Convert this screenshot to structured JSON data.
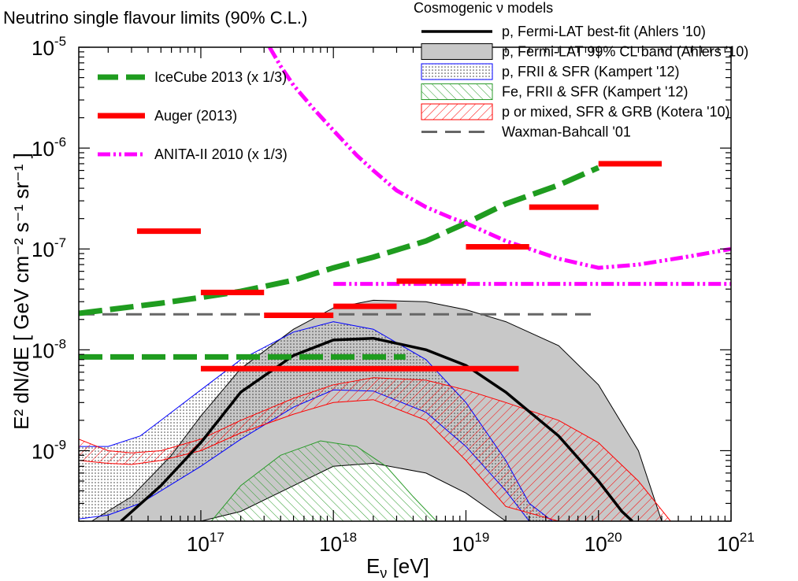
{
  "chart_data": {
    "type": "line",
    "title": "Neutrino single flavour limits (90% C.L.)",
    "xlabel": {
      "base": "E",
      "sub": "ν",
      "unit": " [eV]"
    },
    "ylabel": "E² dN/dE  [ GeV cm⁻² s⁻¹ sr⁻¹ ]",
    "xlim": [
      1.2e+16,
      1e+21
    ],
    "ylim": [
      2e-10,
      1e-05
    ],
    "x_ticks": [
      {
        "base": "10",
        "exp": "17"
      },
      {
        "base": "10",
        "exp": "18"
      },
      {
        "base": "10",
        "exp": "19"
      },
      {
        "base": "10",
        "exp": "20"
      },
      {
        "base": "10",
        "exp": "21"
      }
    ],
    "y_ticks": [
      {
        "base": "10",
        "exp": "-5"
      },
      {
        "base": "10",
        "exp": "-6"
      },
      {
        "base": "10",
        "exp": "-7"
      },
      {
        "base": "10",
        "exp": "-8"
      },
      {
        "base": "10",
        "exp": "-9"
      }
    ],
    "model_legend_title": "Cosmogenic ν models",
    "limits_legend": [
      {
        "label": "IceCube 2013 (x 1/3)",
        "color": "#1f9c1f",
        "style": "dashed"
      },
      {
        "label": "Auger (2013)",
        "color": "#ff0000",
        "style": "solid"
      },
      {
        "label": "ANITA-II 2010 (x 1/3)",
        "color": "#ff00ff",
        "style": "dashdot"
      }
    ],
    "models_legend": [
      {
        "label": "p, Fermi-LAT best-fit (Ahlers '10)",
        "kind": "line",
        "color": "#000000"
      },
      {
        "label": "p, Fermi-LAT 99% CL band (Ahlers '10)",
        "kind": "band",
        "color": "#c8c8c8"
      },
      {
        "label": "p, FRII & SFR (Kampert '12)",
        "kind": "dots",
        "color": "#0000ff"
      },
      {
        "label": "Fe, FRII & SFR (Kampert '12)",
        "kind": "hatch",
        "color": "#2a9a2a"
      },
      {
        "label": "p or mixed, SFR & GRB (Kotera '10)",
        "kind": "hatch",
        "color": "#ff0000"
      },
      {
        "label": "Waxman-Bahcall '01",
        "kind": "dashed",
        "color": "#666666"
      }
    ],
    "series": {
      "icecube_diffuse": {
        "name": "IceCube 2013 (x 1/3)",
        "x": [
          1.2e+16,
          2e+16,
          5e+16,
          1e+17,
          2e+17,
          5e+17,
          1e+18,
          2e+18,
          5e+18,
          1e+19,
          2e+19,
          5e+19,
          1e+20
        ],
        "y": [
          2.3e-08,
          2.5e-08,
          2.9e-08,
          3.3e-08,
          3.8e-08,
          4.9e-08,
          6.5e-08,
          8.3e-08,
          1.2e-07,
          1.8e-07,
          2.8e-07,
          4.3e-07,
          6.4e-07
        ]
      },
      "icecube_integral": {
        "name": "IceCube 2013 (x 1/3) integral",
        "x": [
          1.2e+16,
          3.5e+18
        ],
        "y": [
          8.5e-09,
          8.5e-09
        ]
      },
      "auger_bins": [
        {
          "x0": 3.3e+16,
          "x1": 1e+17,
          "y": 1.5e-07
        },
        {
          "x0": 1e+17,
          "x1": 3e+17,
          "y": 3.7e-08
        },
        {
          "x0": 3e+17,
          "x1": 1e+18,
          "y": 2.2e-08
        },
        {
          "x0": 1e+18,
          "x1": 3e+18,
          "y": 2.7e-08
        },
        {
          "x0": 3e+18,
          "x1": 1e+19,
          "y": 4.8e-08
        },
        {
          "x0": 1e+19,
          "x1": 3e+19,
          "y": 1.05e-07
        },
        {
          "x0": 3e+19,
          "x1": 1e+20,
          "y": 2.6e-07
        },
        {
          "x0": 1e+20,
          "x1": 3e+20,
          "y": 7e-07
        }
      ],
      "auger_integral": {
        "x0": 1e+17,
        "x1": 2.5e+19,
        "y": 6.5e-09
      },
      "anita_diffuse": {
        "name": "ANITA-II 2010 (x 1/3)",
        "x": [
          3.3e+17,
          4e+17,
          5e+17,
          7e+17,
          1e+18,
          1.5e+18,
          2e+18,
          3e+18,
          5e+18,
          8e+18,
          1e+19,
          2e+19,
          5e+19,
          1e+20,
          2e+20,
          5e+20,
          1e+21
        ],
        "y": [
          1e-05,
          6.5e-06,
          4.2e-06,
          2.5e-06,
          1.5e-06,
          8.5e-07,
          6e-07,
          3.8e-07,
          2.6e-07,
          2e-07,
          1.8e-07,
          1.2e-07,
          8e-08,
          6.5e-08,
          7e-08,
          8.5e-08,
          1e-07
        ]
      },
      "anita_integral": {
        "x0": 1e+18,
        "x1": 1e+21,
        "y": 4.5e-08
      },
      "waxman_bahcall": {
        "name": "Waxman-Bahcall '01",
        "x0": 1.2e+16,
        "x1": 1e+20,
        "y": 2.25e-08
      },
      "ahlers_bestfit": {
        "x": [
          2.5e+16,
          5e+16,
          1e+17,
          2e+17,
          5e+17,
          1e+18,
          2e+18,
          5e+18,
          1e+19,
          2e+19,
          5e+19,
          1e+20,
          1.5e+20,
          1.8e+20
        ],
        "y": [
          2e-10,
          4.5e-10,
          1.2e-09,
          3.8e-09,
          8.8e-09,
          1.25e-08,
          1.3e-08,
          1e-08,
          7e-09,
          3.8e-09,
          1.4e-09,
          5e-10,
          2.5e-10,
          2e-10
        ]
      },
      "ahlers_band": {
        "x": [
          1.5e+16,
          3e+16,
          6e+16,
          1e+17,
          2e+17,
          5e+17,
          1e+18,
          2e+18,
          5e+18,
          1e+19,
          2e+19,
          5e+19,
          1e+20,
          2e+20,
          3e+20
        ],
        "upper": [
          2e-10,
          3.5e-10,
          9e-10,
          2.2e-09,
          6.5e-09,
          1.6e-08,
          2.6e-08,
          3.1e-08,
          3e-08,
          2.5e-08,
          1.9e-08,
          1.1e-08,
          4.5e-09,
          1e-09,
          2e-10
        ],
        "lower": [
          2e-10,
          2e-10,
          2e-10,
          2e-10,
          2.5e-10,
          4.5e-10,
          7e-10,
          7.5e-10,
          6e-10,
          3.8e-10,
          2e-10,
          2e-10,
          2e-10,
          2e-10,
          2e-10
        ]
      },
      "kampert_p": {
        "x": [
          1.2e+16,
          2e+16,
          3.5e+16,
          5e+16,
          1e+17,
          2e+17,
          5e+17,
          1e+18,
          2e+18,
          5e+18,
          1e+19,
          2e+19,
          3e+19,
          4.5e+19
        ],
        "upper": [
          1.1e-09,
          1.1e-09,
          1.4e-09,
          2e-09,
          4e-09,
          8e-09,
          1.5e-08,
          1.9e-08,
          1.6e-08,
          8e-09,
          3e-09,
          8e-10,
          3e-10,
          2e-10
        ],
        "lower": [
          2.1e-10,
          2.3e-10,
          3e-10,
          4e-10,
          7e-10,
          1.3e-09,
          2.7e-09,
          4e-09,
          3.9e-09,
          2.4e-09,
          1.1e-09,
          4e-10,
          2e-10,
          2e-10
        ]
      },
      "kampert_fe": {
        "x": [
          1.2e+17,
          2e+17,
          4e+17,
          8e+17,
          1.5e+18,
          2.5e+18,
          4e+18,
          6e+18
        ],
        "upper": [
          2e-10,
          4.5e-10,
          9e-10,
          1.25e-09,
          1.1e-09,
          7e-10,
          3.5e-10,
          2e-10
        ],
        "lower": [
          2e-10,
          2e-10,
          2e-10,
          2e-10,
          2e-10,
          2e-10,
          2e-10,
          2e-10
        ]
      },
      "kotera": {
        "x": [
          1.2e+16,
          2e+16,
          3e+16,
          5e+16,
          1e+17,
          2e+17,
          5e+17,
          1e+18,
          2e+18,
          5e+18,
          1e+19,
          2e+19,
          5e+19,
          1e+20,
          2e+20,
          3.5e+20
        ],
        "upper": [
          1.3e-09,
          1e-09,
          9.5e-10,
          1e-09,
          1.3e-09,
          2e-09,
          3.3e-09,
          4.5e-09,
          5.3e-09,
          5e-09,
          4e-09,
          3e-09,
          2e-09,
          1.2e-09,
          5e-10,
          2e-10
        ],
        "lower": [
          8e-10,
          7.5e-10,
          7.3e-10,
          8e-10,
          1e-09,
          1.5e-09,
          2.3e-09,
          3e-09,
          3.2e-09,
          2e-09,
          8e-10,
          2.8e-10,
          2e-10,
          2e-10,
          2e-10,
          2e-10
        ]
      }
    }
  }
}
